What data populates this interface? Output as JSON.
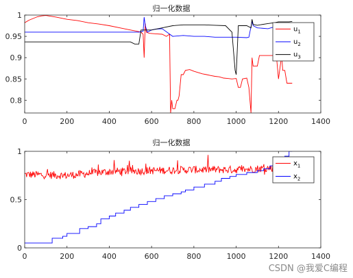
{
  "chart_data": [
    {
      "type": "line",
      "title": "归一化数据",
      "xlim": [
        0,
        1400
      ],
      "ylim": [
        0.77,
        1.0
      ],
      "xticks": [
        0,
        200,
        400,
        600,
        800,
        1000,
        1200,
        1400
      ],
      "yticks": [
        0.8,
        0.85,
        0.9,
        0.95,
        1
      ],
      "ytick_labels": [
        "0.8",
        "0.85",
        "0.9",
        "0.95",
        "1"
      ],
      "grid": false,
      "legend_position": "top-right",
      "series": [
        {
          "name": "u",
          "sub": "1",
          "color": "#ff0000",
          "points": [
            [
              0,
              0.982
            ],
            [
              20,
              0.988
            ],
            [
              40,
              0.992
            ],
            [
              60,
              0.996
            ],
            [
              80,
              0.998
            ],
            [
              100,
              0.999
            ],
            [
              150,
              0.995
            ],
            [
              200,
              0.99
            ],
            [
              250,
              0.987
            ],
            [
              300,
              0.982
            ],
            [
              350,
              0.979
            ],
            [
              400,
              0.975
            ],
            [
              450,
              0.97
            ],
            [
              500,
              0.965
            ],
            [
              530,
              0.962
            ],
            [
              550,
              0.96
            ],
            [
              560,
              0.955
            ],
            [
              565,
              0.9
            ],
            [
              570,
              0.98
            ],
            [
              575,
              0.96
            ],
            [
              590,
              0.957
            ],
            [
              620,
              0.956
            ],
            [
              650,
              0.955
            ],
            [
              670,
              0.95
            ],
            [
              685,
              0.955
            ],
            [
              690,
              0.77
            ],
            [
              695,
              0.8
            ],
            [
              700,
              0.78
            ],
            [
              710,
              0.78
            ],
            [
              720,
              0.8
            ],
            [
              725,
              0.8
            ],
            [
              730,
              0.81
            ],
            [
              740,
              0.86
            ],
            [
              750,
              0.86
            ],
            [
              760,
              0.87
            ],
            [
              780,
              0.872
            ],
            [
              800,
              0.868
            ],
            [
              820,
              0.865
            ],
            [
              840,
              0.862
            ],
            [
              860,
              0.86
            ],
            [
              880,
              0.858
            ],
            [
              900,
              0.856
            ],
            [
              920,
              0.855
            ],
            [
              940,
              0.852
            ],
            [
              960,
              0.851
            ],
            [
              980,
              0.85
            ],
            [
              1000,
              0.851
            ],
            [
              1010,
              0.83
            ],
            [
              1020,
              0.83
            ],
            [
              1030,
              0.85
            ],
            [
              1050,
              0.852
            ],
            [
              1060,
              0.83
            ],
            [
              1070,
              0.77
            ],
            [
              1075,
              0.9
            ],
            [
              1080,
              0.88
            ],
            [
              1100,
              0.88
            ],
            [
              1110,
              0.905
            ],
            [
              1150,
              0.905
            ],
            [
              1190,
              0.905
            ],
            [
              1200,
              0.85
            ],
            [
              1215,
              0.905
            ],
            [
              1220,
              0.87
            ],
            [
              1230,
              0.87
            ],
            [
              1240,
              0.84
            ],
            [
              1265,
              0.84
            ]
          ]
        },
        {
          "name": "u",
          "sub": "2",
          "color": "#0000ff",
          "points": [
            [
              0,
              0.96
            ],
            [
              100,
              0.96
            ],
            [
              200,
              0.96
            ],
            [
              300,
              0.96
            ],
            [
              400,
              0.96
            ],
            [
              500,
              0.96
            ],
            [
              540,
              0.96
            ],
            [
              560,
              0.962
            ],
            [
              565,
              0.995
            ],
            [
              570,
              0.975
            ],
            [
              580,
              0.96
            ],
            [
              600,
              0.965
            ],
            [
              620,
              0.967
            ],
            [
              650,
              0.968
            ],
            [
              700,
              0.95
            ],
            [
              750,
              0.952
            ],
            [
              800,
              0.95
            ],
            [
              850,
              0.95
            ],
            [
              900,
              0.948
            ],
            [
              950,
              0.948
            ],
            [
              1000,
              0.948
            ],
            [
              1050,
              0.947
            ],
            [
              1060,
              0.948
            ],
            [
              1075,
              0.985
            ],
            [
              1080,
              0.975
            ],
            [
              1100,
              0.97
            ],
            [
              1150,
              0.968
            ],
            [
              1200,
              0.975
            ],
            [
              1230,
              0.975
            ],
            [
              1265,
              0.972
            ]
          ]
        },
        {
          "name": "u",
          "sub": "3",
          "color": "#000000",
          "points": [
            [
              0,
              0.937
            ],
            [
              100,
              0.937
            ],
            [
              200,
              0.937
            ],
            [
              300,
              0.937
            ],
            [
              400,
              0.937
            ],
            [
              500,
              0.937
            ],
            [
              520,
              0.932
            ],
            [
              540,
              0.932
            ],
            [
              550,
              0.965
            ],
            [
              600,
              0.965
            ],
            [
              650,
              0.97
            ],
            [
              700,
              0.975
            ],
            [
              750,
              0.977
            ],
            [
              800,
              0.977
            ],
            [
              850,
              0.977
            ],
            [
              900,
              0.976
            ],
            [
              950,
              0.975
            ],
            [
              980,
              0.96
            ],
            [
              995,
              0.87
            ],
            [
              1000,
              0.86
            ],
            [
              1010,
              0.975
            ],
            [
              1050,
              0.975
            ],
            [
              1070,
              0.97
            ],
            [
              1075,
              0.99
            ],
            [
              1080,
              0.978
            ],
            [
              1100,
              0.976
            ],
            [
              1150,
              0.98
            ],
            [
              1180,
              0.982
            ],
            [
              1200,
              0.984
            ],
            [
              1250,
              0.984
            ],
            [
              1265,
              0.985
            ]
          ]
        }
      ]
    },
    {
      "type": "line",
      "title": "归一化数据",
      "xlim": [
        0,
        1400
      ],
      "ylim": [
        0,
        1.0
      ],
      "xticks": [
        0,
        200,
        400,
        600,
        800,
        1000,
        1200,
        1400
      ],
      "yticks": [
        0,
        0.5,
        1
      ],
      "ytick_labels": [
        "0",
        "0.5",
        "1"
      ],
      "grid": false,
      "legend_position": "top-right",
      "series": [
        {
          "name": "x",
          "sub": "1",
          "color": "#ff0000",
          "noisy": true,
          "trend": [
            [
              0,
              0.76
            ],
            [
              200,
              0.75
            ],
            [
              400,
              0.79
            ],
            [
              600,
              0.8
            ],
            [
              800,
              0.81
            ],
            [
              1000,
              0.81
            ],
            [
              1200,
              0.83
            ],
            [
              1265,
              0.84
            ]
          ]
        },
        {
          "name": "x",
          "sub": "2",
          "color": "#0000ff",
          "points": [
            [
              0,
              0.05
            ],
            [
              130,
              0.05
            ],
            [
              130,
              0.1
            ],
            [
              180,
              0.1
            ],
            [
              180,
              0.12
            ],
            [
              200,
              0.12
            ],
            [
              200,
              0.15
            ],
            [
              260,
              0.15
            ],
            [
              260,
              0.2
            ],
            [
              300,
              0.2
            ],
            [
              300,
              0.22
            ],
            [
              340,
              0.22
            ],
            [
              340,
              0.25
            ],
            [
              360,
              0.25
            ],
            [
              360,
              0.3
            ],
            [
              400,
              0.3
            ],
            [
              400,
              0.33
            ],
            [
              430,
              0.33
            ],
            [
              430,
              0.36
            ],
            [
              470,
              0.36
            ],
            [
              470,
              0.39
            ],
            [
              500,
              0.39
            ],
            [
              500,
              0.42
            ],
            [
              540,
              0.42
            ],
            [
              540,
              0.45
            ],
            [
              580,
              0.45
            ],
            [
              580,
              0.48
            ],
            [
              620,
              0.48
            ],
            [
              620,
              0.51
            ],
            [
              660,
              0.51
            ],
            [
              660,
              0.54
            ],
            [
              700,
              0.54
            ],
            [
              700,
              0.56
            ],
            [
              740,
              0.56
            ],
            [
              740,
              0.58
            ],
            [
              760,
              0.58
            ],
            [
              760,
              0.6
            ],
            [
              800,
              0.6
            ],
            [
              800,
              0.63
            ],
            [
              850,
              0.63
            ],
            [
              850,
              0.66
            ],
            [
              900,
              0.66
            ],
            [
              900,
              0.69
            ],
            [
              930,
              0.69
            ],
            [
              930,
              0.72
            ],
            [
              970,
              0.72
            ],
            [
              970,
              0.74
            ],
            [
              1000,
              0.74
            ],
            [
              1000,
              0.76
            ],
            [
              1050,
              0.76
            ],
            [
              1050,
              0.78
            ],
            [
              1100,
              0.78
            ],
            [
              1100,
              0.8
            ],
            [
              1130,
              0.8
            ],
            [
              1130,
              0.82
            ],
            [
              1160,
              0.82
            ],
            [
              1160,
              0.85
            ],
            [
              1190,
              0.85
            ],
            [
              1190,
              0.89
            ],
            [
              1210,
              0.89
            ],
            [
              1210,
              0.92
            ],
            [
              1230,
              0.92
            ],
            [
              1230,
              0.95
            ],
            [
              1250,
              0.95
            ],
            [
              1250,
              1.0
            ],
            [
              1265,
              1.0
            ]
          ]
        }
      ]
    }
  ],
  "watermark": "CSDN @我爱C编程"
}
